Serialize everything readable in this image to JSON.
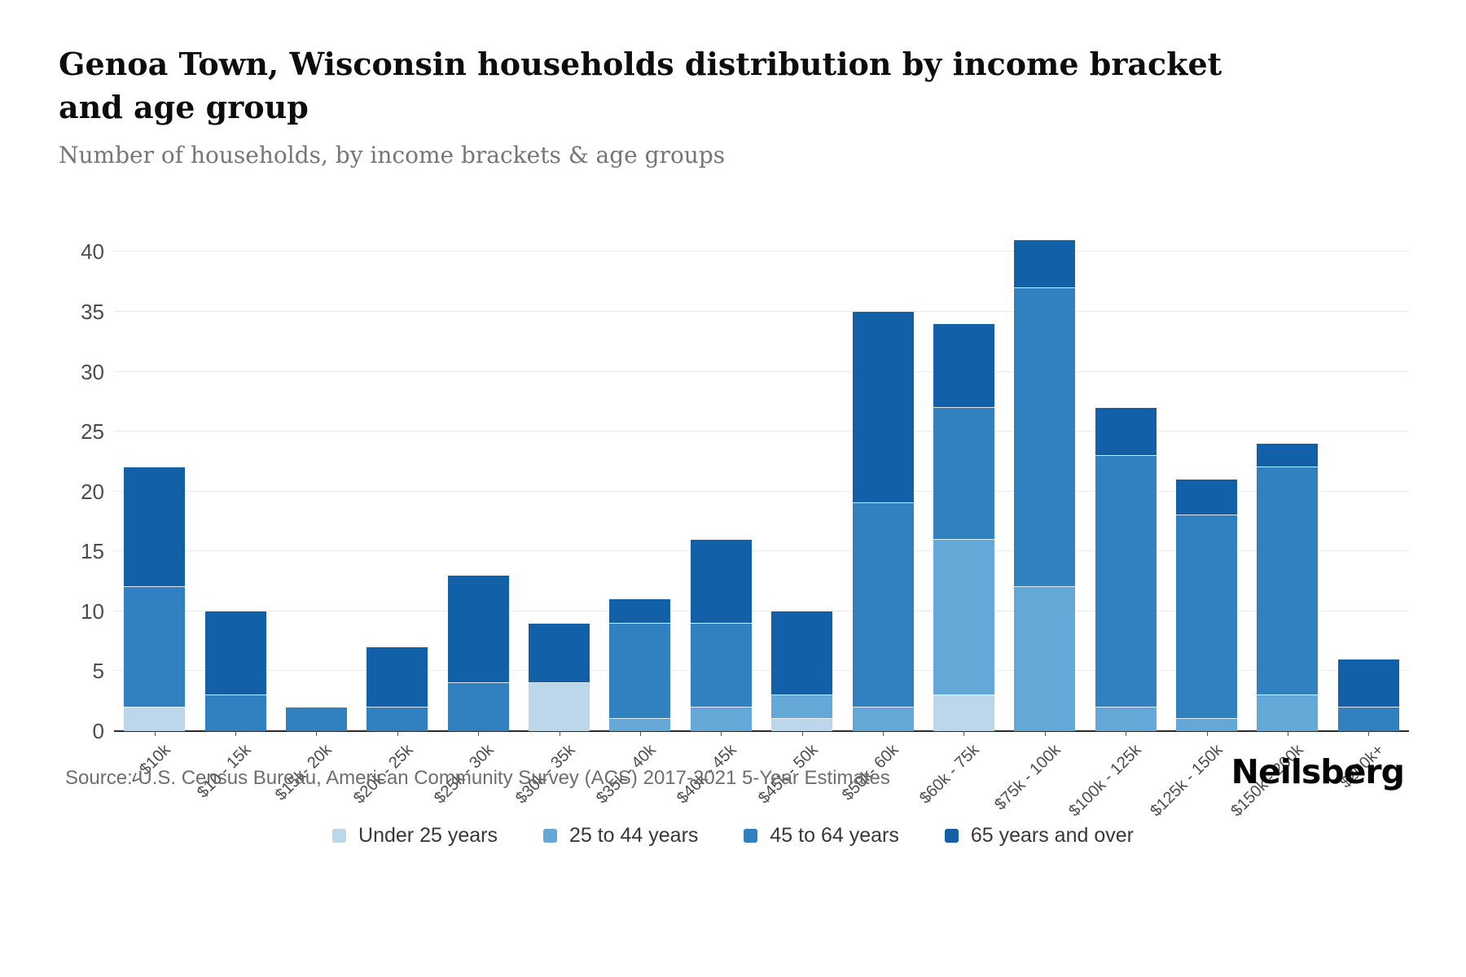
{
  "header": {
    "title": "Genoa Town, Wisconsin households distribution by income bracket and age group",
    "subtitle": "Number of households, by income brackets & age groups"
  },
  "footer": {
    "source": "Source: U.S. Census Bureau, American Community Survey (ACS) 2017-2021 5-Year Estimates",
    "logo": "Neilsberg"
  },
  "colors": {
    "under_25": "#bdd7ea",
    "age_25_44": "#63a8d6",
    "age_45_64": "#3181c1",
    "age_65_over": "#1160a8",
    "gridline": "#ececec",
    "axis_line": "#2b2b2b",
    "tick_text": "#4c4c4c",
    "subtitle_text": "#767676",
    "source_text": "#6e6e6e"
  },
  "chart_data": {
    "type": "bar",
    "stacked": true,
    "title": "Genoa Town, Wisconsin households distribution by income bracket and age group",
    "subtitle": "Number of households, by income brackets & age groups",
    "xlabel": "",
    "ylabel": "",
    "grid": "horizontal",
    "legend_position": "bottom",
    "y_ticks": [
      0,
      5,
      10,
      15,
      20,
      25,
      30,
      35,
      40
    ],
    "ylim": [
      0,
      43.7
    ],
    "categories": [
      "< $10k",
      "$10 - 15k",
      "$15k- 20k",
      "$20k - 25k",
      "$25k - 30k",
      "$30k - 35k",
      "$35k - 40k",
      "$40k - 45k",
      "$45k - 50k",
      "$50k- 60k",
      "$60k - 75k",
      "$75k - 100k",
      "$100k - 125k",
      "$125k - 150k",
      "$150k - 200k",
      "$200k+"
    ],
    "series": [
      {
        "name": "Under 25 years",
        "color": "#bdd7ea",
        "values": [
          2,
          0,
          0,
          0,
          0,
          4,
          0,
          0,
          1,
          0,
          3,
          0,
          0,
          0,
          0,
          0
        ]
      },
      {
        "name": "25 to 44 years",
        "color": "#63a8d6",
        "values": [
          0,
          0,
          0,
          0,
          0,
          0,
          1,
          2,
          2,
          2,
          13,
          12,
          2,
          1,
          3,
          0
        ]
      },
      {
        "name": "45 to 64 years",
        "color": "#3181c1",
        "values": [
          10,
          3,
          2,
          2,
          4,
          0,
          8,
          7,
          0,
          17,
          11,
          25,
          21,
          17,
          19,
          2
        ]
      },
      {
        "name": "65 years and over",
        "color": "#1160a8",
        "values": [
          10,
          7,
          0,
          5,
          9,
          5,
          2,
          7,
          7,
          16,
          7,
          4,
          4,
          3,
          2,
          4
        ]
      }
    ],
    "totals": [
      22,
      10,
      2,
      7,
      13,
      9,
      11,
      16,
      10,
      35,
      34,
      41,
      27,
      21,
      24,
      6
    ]
  }
}
